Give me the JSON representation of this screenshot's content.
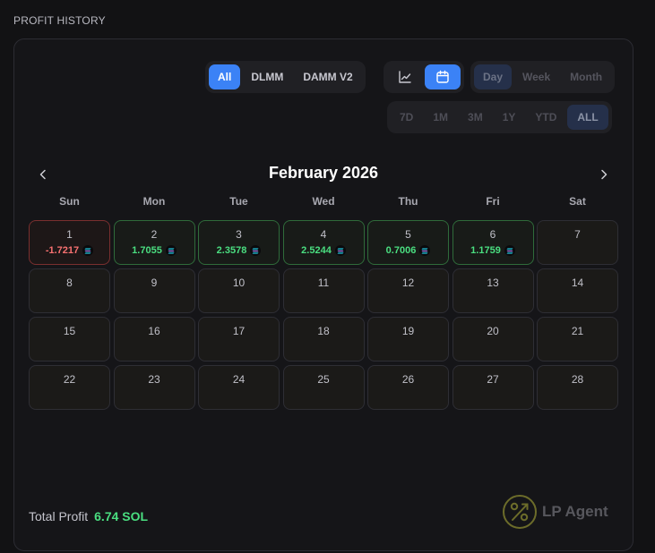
{
  "section_title": "PROFIT HISTORY",
  "source_tabs": [
    {
      "label": "All",
      "active": true
    },
    {
      "label": "DLMM",
      "active": false
    },
    {
      "label": "DAMM V2",
      "active": false
    }
  ],
  "view_toggle": [
    {
      "icon": "line-chart-icon",
      "active": false
    },
    {
      "icon": "calendar-icon",
      "active": true
    }
  ],
  "granularity": [
    {
      "label": "Day",
      "active": true
    },
    {
      "label": "Week",
      "active": false
    },
    {
      "label": "Month",
      "active": false
    }
  ],
  "ranges": [
    {
      "label": "7D",
      "active": false
    },
    {
      "label": "1M",
      "active": false
    },
    {
      "label": "3M",
      "active": false
    },
    {
      "label": "1Y",
      "active": false
    },
    {
      "label": "YTD",
      "active": false
    },
    {
      "label": "ALL",
      "active": true
    }
  ],
  "calendar": {
    "month_title": "February 2026",
    "prev_icon": "chevron-left-icon",
    "next_icon": "chevron-right-icon",
    "weekdays": [
      "Sun",
      "Mon",
      "Tue",
      "Wed",
      "Thu",
      "Fri",
      "Sat"
    ],
    "days": [
      {
        "day": "1",
        "amount": "-1.7217",
        "status": "neg"
      },
      {
        "day": "2",
        "amount": "1.7055",
        "status": "pos"
      },
      {
        "day": "3",
        "amount": "2.3578",
        "status": "pos"
      },
      {
        "day": "4",
        "amount": "2.5244",
        "status": "pos"
      },
      {
        "day": "5",
        "amount": "0.7006",
        "status": "pos"
      },
      {
        "day": "6",
        "amount": "1.1759",
        "status": "pos"
      },
      {
        "day": "7"
      },
      {
        "day": "8"
      },
      {
        "day": "9"
      },
      {
        "day": "10"
      },
      {
        "day": "11"
      },
      {
        "day": "12"
      },
      {
        "day": "13"
      },
      {
        "day": "14"
      },
      {
        "day": "15"
      },
      {
        "day": "16"
      },
      {
        "day": "17"
      },
      {
        "day": "18"
      },
      {
        "day": "19"
      },
      {
        "day": "20"
      },
      {
        "day": "21"
      },
      {
        "day": "22"
      },
      {
        "day": "23"
      },
      {
        "day": "24"
      },
      {
        "day": "25"
      },
      {
        "day": "26"
      },
      {
        "day": "27"
      },
      {
        "day": "28"
      }
    ]
  },
  "total": {
    "label": "Total Profit",
    "value": "6.74 SOL"
  },
  "brand": {
    "name": "LP Agent",
    "icon": "percent-logo-icon"
  },
  "colors": {
    "accent": "#3b82f6",
    "positive": "#4ade80",
    "negative": "#f87171"
  }
}
